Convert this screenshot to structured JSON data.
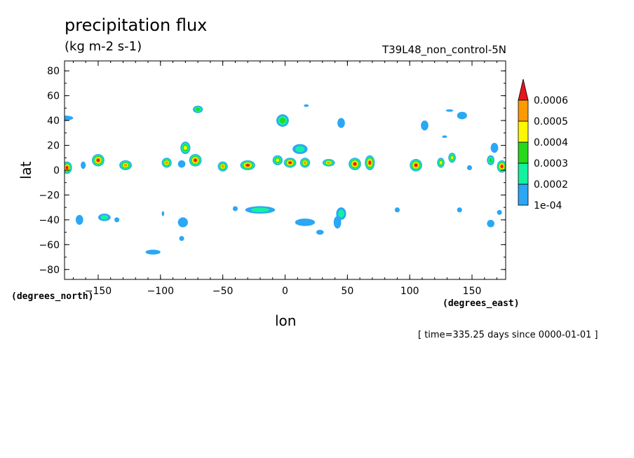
{
  "chart_data": {
    "type": "heatmap",
    "title": "precipitation flux",
    "units": "(kg m-2 s-1)",
    "run_name": "T39L48_non_control-5N",
    "xlabel": "lon",
    "ylabel": "lat",
    "x_unit_label": "(degrees_east)",
    "y_unit_label": "(degrees_north)",
    "timestamp": "[ time=335.25 days since 0000-01-01 ]",
    "xlim": [
      -177,
      177
    ],
    "ylim": [
      -88,
      88
    ],
    "x_ticks": [
      -150,
      -100,
      -50,
      0,
      50,
      100,
      150
    ],
    "x_tick_labels": [
      "−150",
      "−100",
      "−50",
      "0",
      "50",
      "100",
      "150"
    ],
    "y_ticks": [
      80,
      60,
      40,
      20,
      0,
      -20,
      -40,
      -60,
      -80
    ],
    "y_tick_labels": [
      "80",
      "60",
      "40",
      "20",
      "0",
      "−20",
      "−40",
      "−60",
      "−80"
    ],
    "colorbar": {
      "levels": [
        "1e-04",
        "0.0002",
        "0.0003",
        "0.0004",
        "0.0005",
        "0.0006"
      ],
      "colors": [
        "#2aa7f5",
        "#13f2a0",
        "#26d91a",
        "#fff700",
        "#ff9900",
        "#e8141c"
      ]
    },
    "cells": [
      {
        "lon": -175,
        "lat": 2,
        "level": 6,
        "rx": 4,
        "ry": 5
      },
      {
        "lon": -150,
        "lat": 8,
        "level": 6,
        "rx": 5,
        "ry": 5
      },
      {
        "lon": -128,
        "lat": 4,
        "level": 5,
        "rx": 5,
        "ry": 4
      },
      {
        "lon": -95,
        "lat": 6,
        "level": 5,
        "rx": 4,
        "ry": 4
      },
      {
        "lon": -80,
        "lat": 18,
        "level": 4,
        "rx": 4,
        "ry": 5
      },
      {
        "lon": -72,
        "lat": 8,
        "level": 6,
        "rx": 5,
        "ry": 5
      },
      {
        "lon": -50,
        "lat": 3,
        "level": 5,
        "rx": 4,
        "ry": 4
      },
      {
        "lon": -30,
        "lat": 4,
        "level": 6,
        "rx": 6,
        "ry": 4
      },
      {
        "lon": -6,
        "lat": 8,
        "level": 4,
        "rx": 4,
        "ry": 4
      },
      {
        "lon": 4,
        "lat": 6,
        "level": 6,
        "rx": 5,
        "ry": 4
      },
      {
        "lon": 16,
        "lat": 6,
        "level": 5,
        "rx": 4,
        "ry": 4
      },
      {
        "lon": 35,
        "lat": 6,
        "level": 5,
        "rx": 5,
        "ry": 3
      },
      {
        "lon": 56,
        "lat": 5,
        "level": 6,
        "rx": 5,
        "ry": 5
      },
      {
        "lon": 68,
        "lat": 6,
        "level": 6,
        "rx": 4,
        "ry": 6
      },
      {
        "lon": 105,
        "lat": 4,
        "level": 6,
        "rx": 5,
        "ry": 5
      },
      {
        "lon": 125,
        "lat": 6,
        "level": 4,
        "rx": 3,
        "ry": 4
      },
      {
        "lon": 134,
        "lat": 10,
        "level": 4,
        "rx": 3,
        "ry": 4
      },
      {
        "lon": 174,
        "lat": 3,
        "level": 6,
        "rx": 4,
        "ry": 5
      },
      {
        "lon": 165,
        "lat": 8,
        "level": 3,
        "rx": 3,
        "ry": 4
      },
      {
        "lon": -2,
        "lat": 40,
        "level": 3,
        "rx": 5,
        "ry": 5
      },
      {
        "lon": -70,
        "lat": 49,
        "level": 3,
        "rx": 4,
        "ry": 3
      },
      {
        "lon": 12,
        "lat": 17,
        "level": 2,
        "rx": 6,
        "ry": 4
      },
      {
        "lon": -177,
        "lat": 42,
        "level": 1,
        "rx": 7,
        "ry": 2
      },
      {
        "lon": 112,
        "lat": 36,
        "level": 1,
        "rx": 3,
        "ry": 4
      },
      {
        "lon": 142,
        "lat": 44,
        "level": 1,
        "rx": 4,
        "ry": 3
      },
      {
        "lon": 45,
        "lat": 38,
        "level": 1,
        "rx": 3,
        "ry": 4
      },
      {
        "lon": -165,
        "lat": -40,
        "level": 1,
        "rx": 3,
        "ry": 4
      },
      {
        "lon": -145,
        "lat": -38,
        "level": 2,
        "rx": 5,
        "ry": 3
      },
      {
        "lon": -82,
        "lat": -42,
        "level": 1,
        "rx": 4,
        "ry": 4
      },
      {
        "lon": -20,
        "lat": -32,
        "level": 2,
        "rx": 12,
        "ry": 3
      },
      {
        "lon": 16,
        "lat": -42,
        "level": 1,
        "rx": 8,
        "ry": 3
      },
      {
        "lon": 45,
        "lat": -35,
        "level": 2,
        "rx": 4,
        "ry": 5
      },
      {
        "lon": 42,
        "lat": -42,
        "level": 1,
        "rx": 3,
        "ry": 5
      },
      {
        "lon": 28,
        "lat": -50,
        "level": 1,
        "rx": 3,
        "ry": 2
      },
      {
        "lon": -106,
        "lat": -66,
        "level": 1,
        "rx": 6,
        "ry": 2
      },
      {
        "lon": 165,
        "lat": -43,
        "level": 1,
        "rx": 3,
        "ry": 3
      },
      {
        "lon": 168,
        "lat": 18,
        "level": 1,
        "rx": 3,
        "ry": 4
      },
      {
        "lon": 90,
        "lat": -32,
        "level": 1,
        "rx": 2,
        "ry": 2
      },
      {
        "lon": 140,
        "lat": -32,
        "level": 1,
        "rx": 2,
        "ry": 2
      },
      {
        "lon": 172,
        "lat": -34,
        "level": 1,
        "rx": 2,
        "ry": 2
      },
      {
        "lon": -40,
        "lat": -31,
        "level": 1,
        "rx": 2,
        "ry": 2
      },
      {
        "lon": -83,
        "lat": -55,
        "level": 1,
        "rx": 2,
        "ry": 2
      },
      {
        "lon": -135,
        "lat": -40,
        "level": 1,
        "rx": 2,
        "ry": 2
      },
      {
        "lon": -98,
        "lat": -35,
        "level": 1,
        "rx": 1,
        "ry": 2
      },
      {
        "lon": 148,
        "lat": 2,
        "level": 1,
        "rx": 2,
        "ry": 2
      },
      {
        "lon": 128,
        "lat": 27,
        "level": 1,
        "rx": 2,
        "ry": 1
      },
      {
        "lon": 132,
        "lat": 48,
        "level": 1,
        "rx": 3,
        "ry": 1
      },
      {
        "lon": 17,
        "lat": 52,
        "level": 1,
        "rx": 2,
        "ry": 1
      },
      {
        "lon": -162,
        "lat": 4,
        "level": 1,
        "rx": 2,
        "ry": 3
      },
      {
        "lon": -83,
        "lat": 5,
        "level": 1,
        "rx": 3,
        "ry": 3
      }
    ]
  }
}
